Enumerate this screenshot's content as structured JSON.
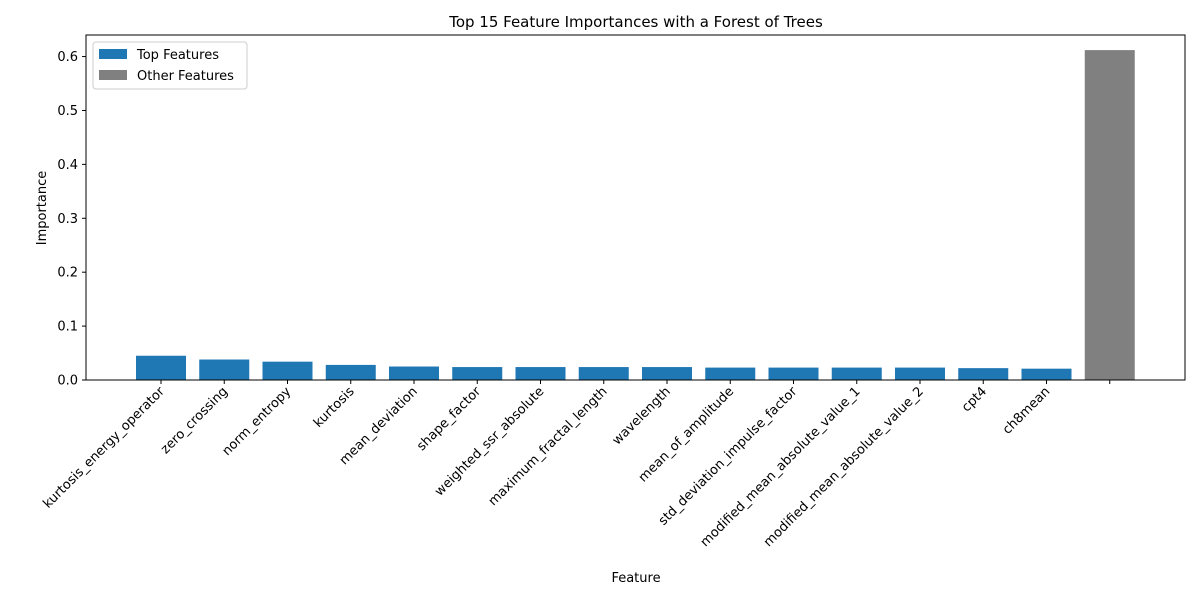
{
  "chart_data": {
    "type": "bar",
    "title": "Top 15 Feature Importances with a Forest of Trees",
    "xlabel": "Feature",
    "ylabel": "Importance",
    "ylim": [
      0,
      0.64
    ],
    "yticks": [
      "0.0",
      "0.1",
      "0.2",
      "0.3",
      "0.4",
      "0.5",
      "0.6"
    ],
    "categories": [
      "kurtosis_energy_operator",
      "zero_crossing",
      "norm_entropy",
      "kurtosis",
      "mean_deviation",
      "shape_factor",
      "weighted_ssr_absolute",
      "maximum_fractal_length",
      "wavelength",
      "mean_of_amplitude",
      "std_deviation_impulse_factor",
      "modified_mean_absolute_value_1",
      "modified_mean_absolute_value_2",
      "cpt4",
      "ch8mean",
      ""
    ],
    "series": [
      {
        "name": "Top Features",
        "color": "#1f77b4",
        "values": [
          0.045,
          0.038,
          0.034,
          0.028,
          0.025,
          0.024,
          0.024,
          0.024,
          0.024,
          0.023,
          0.023,
          0.023,
          0.023,
          0.022,
          0.021,
          null
        ]
      },
      {
        "name": "Other Features",
        "color": "#808080",
        "values": [
          null,
          null,
          null,
          null,
          null,
          null,
          null,
          null,
          null,
          null,
          null,
          null,
          null,
          null,
          null,
          0.612
        ]
      }
    ],
    "legend_position": "top-left",
    "grid": false
  }
}
